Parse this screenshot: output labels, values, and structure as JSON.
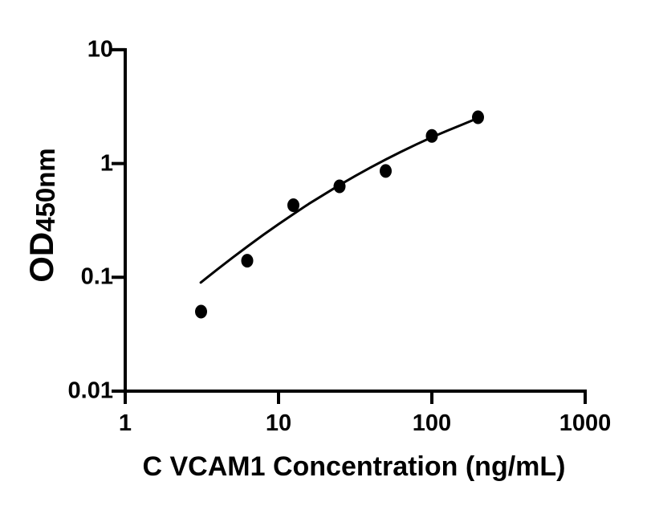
{
  "chart_data": {
    "type": "scatter",
    "title": "",
    "xlabel": "C VCAM1 Concentration (ng/mL)",
    "ylabel_main": "OD",
    "ylabel_sub": "450nm",
    "x_scale": "log",
    "y_scale": "log",
    "xlim": [
      1,
      1000
    ],
    "ylim": [
      0.01,
      10
    ],
    "grid": false,
    "legend": "none",
    "background_color": "#ffffff",
    "axis_color": "#000000",
    "marker_color": "#000000",
    "line_color": "#000000",
    "x_ticks": [
      {
        "value": 1,
        "label": "1"
      },
      {
        "value": 10,
        "label": "10"
      },
      {
        "value": 100,
        "label": "100"
      },
      {
        "value": 1000,
        "label": "1000"
      }
    ],
    "y_ticks": [
      {
        "value": 10,
        "label": "10"
      },
      {
        "value": 1,
        "label": "1"
      },
      {
        "value": 0.1,
        "label": "0.1"
      },
      {
        "value": 0.01,
        "label": "0.01"
      }
    ],
    "series": [
      {
        "name": "standard-points",
        "type": "scatter",
        "marker": "filled-circle",
        "x": [
          3.125,
          6.25,
          12.5,
          25,
          50,
          100,
          200
        ],
        "y": [
          0.05,
          0.14,
          0.43,
          0.63,
          0.86,
          1.75,
          2.55
        ]
      },
      {
        "name": "fitted-curve",
        "type": "line",
        "x": [
          3.11,
          3.98,
          5.01,
          6.31,
          7.94,
          10,
          12.6,
          15.8,
          20,
          25.1,
          31.6,
          39.8,
          50.1,
          63.1,
          79.4,
          100,
          126,
          158,
          200
        ],
        "y": [
          0.09,
          0.117,
          0.149,
          0.188,
          0.236,
          0.293,
          0.362,
          0.443,
          0.538,
          0.649,
          0.776,
          0.922,
          1.086,
          1.27,
          1.475,
          1.7,
          1.94,
          2.2,
          2.51
        ]
      }
    ]
  }
}
